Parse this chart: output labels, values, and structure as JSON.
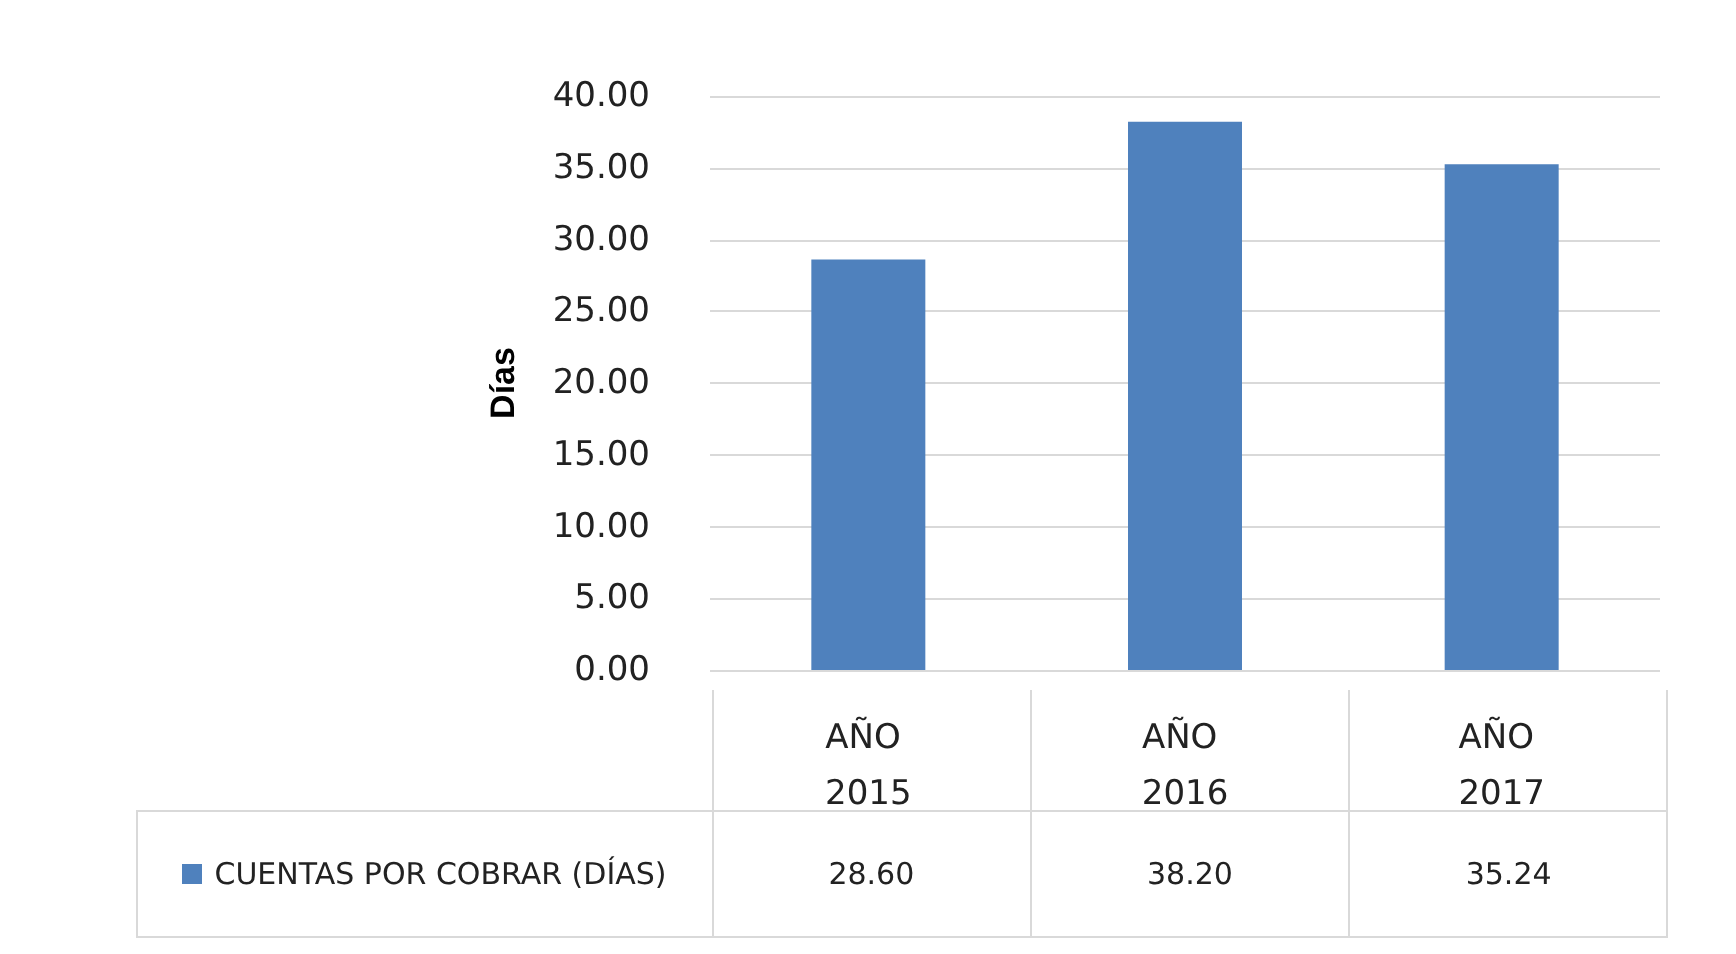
{
  "chart_data": {
    "type": "bar",
    "ylabel": "Días",
    "categories": [
      "AÑO 2015",
      "AÑO 2016",
      "AÑO 2017"
    ],
    "series": [
      {
        "name": "CUENTAS POR COBRAR (DÍAS)",
        "color": "#4f81bd",
        "values": [
          28.6,
          38.2,
          35.24
        ],
        "value_labels": [
          "28.60",
          "38.20",
          "35.24"
        ]
      }
    ],
    "ylim": [
      0,
      40
    ],
    "yticks": [
      {
        "value": 0,
        "label": "0.00"
      },
      {
        "value": 5,
        "label": "5.00"
      },
      {
        "value": 10,
        "label": "10.00"
      },
      {
        "value": 15,
        "label": "15.00"
      },
      {
        "value": 20,
        "label": "20.00"
      },
      {
        "value": 25,
        "label": "25.00"
      },
      {
        "value": 30,
        "label": "30.00"
      },
      {
        "value": 35,
        "label": "35.00"
      },
      {
        "value": 40,
        "label": "40.00"
      }
    ],
    "grid": "y",
    "legend": "bottom"
  }
}
